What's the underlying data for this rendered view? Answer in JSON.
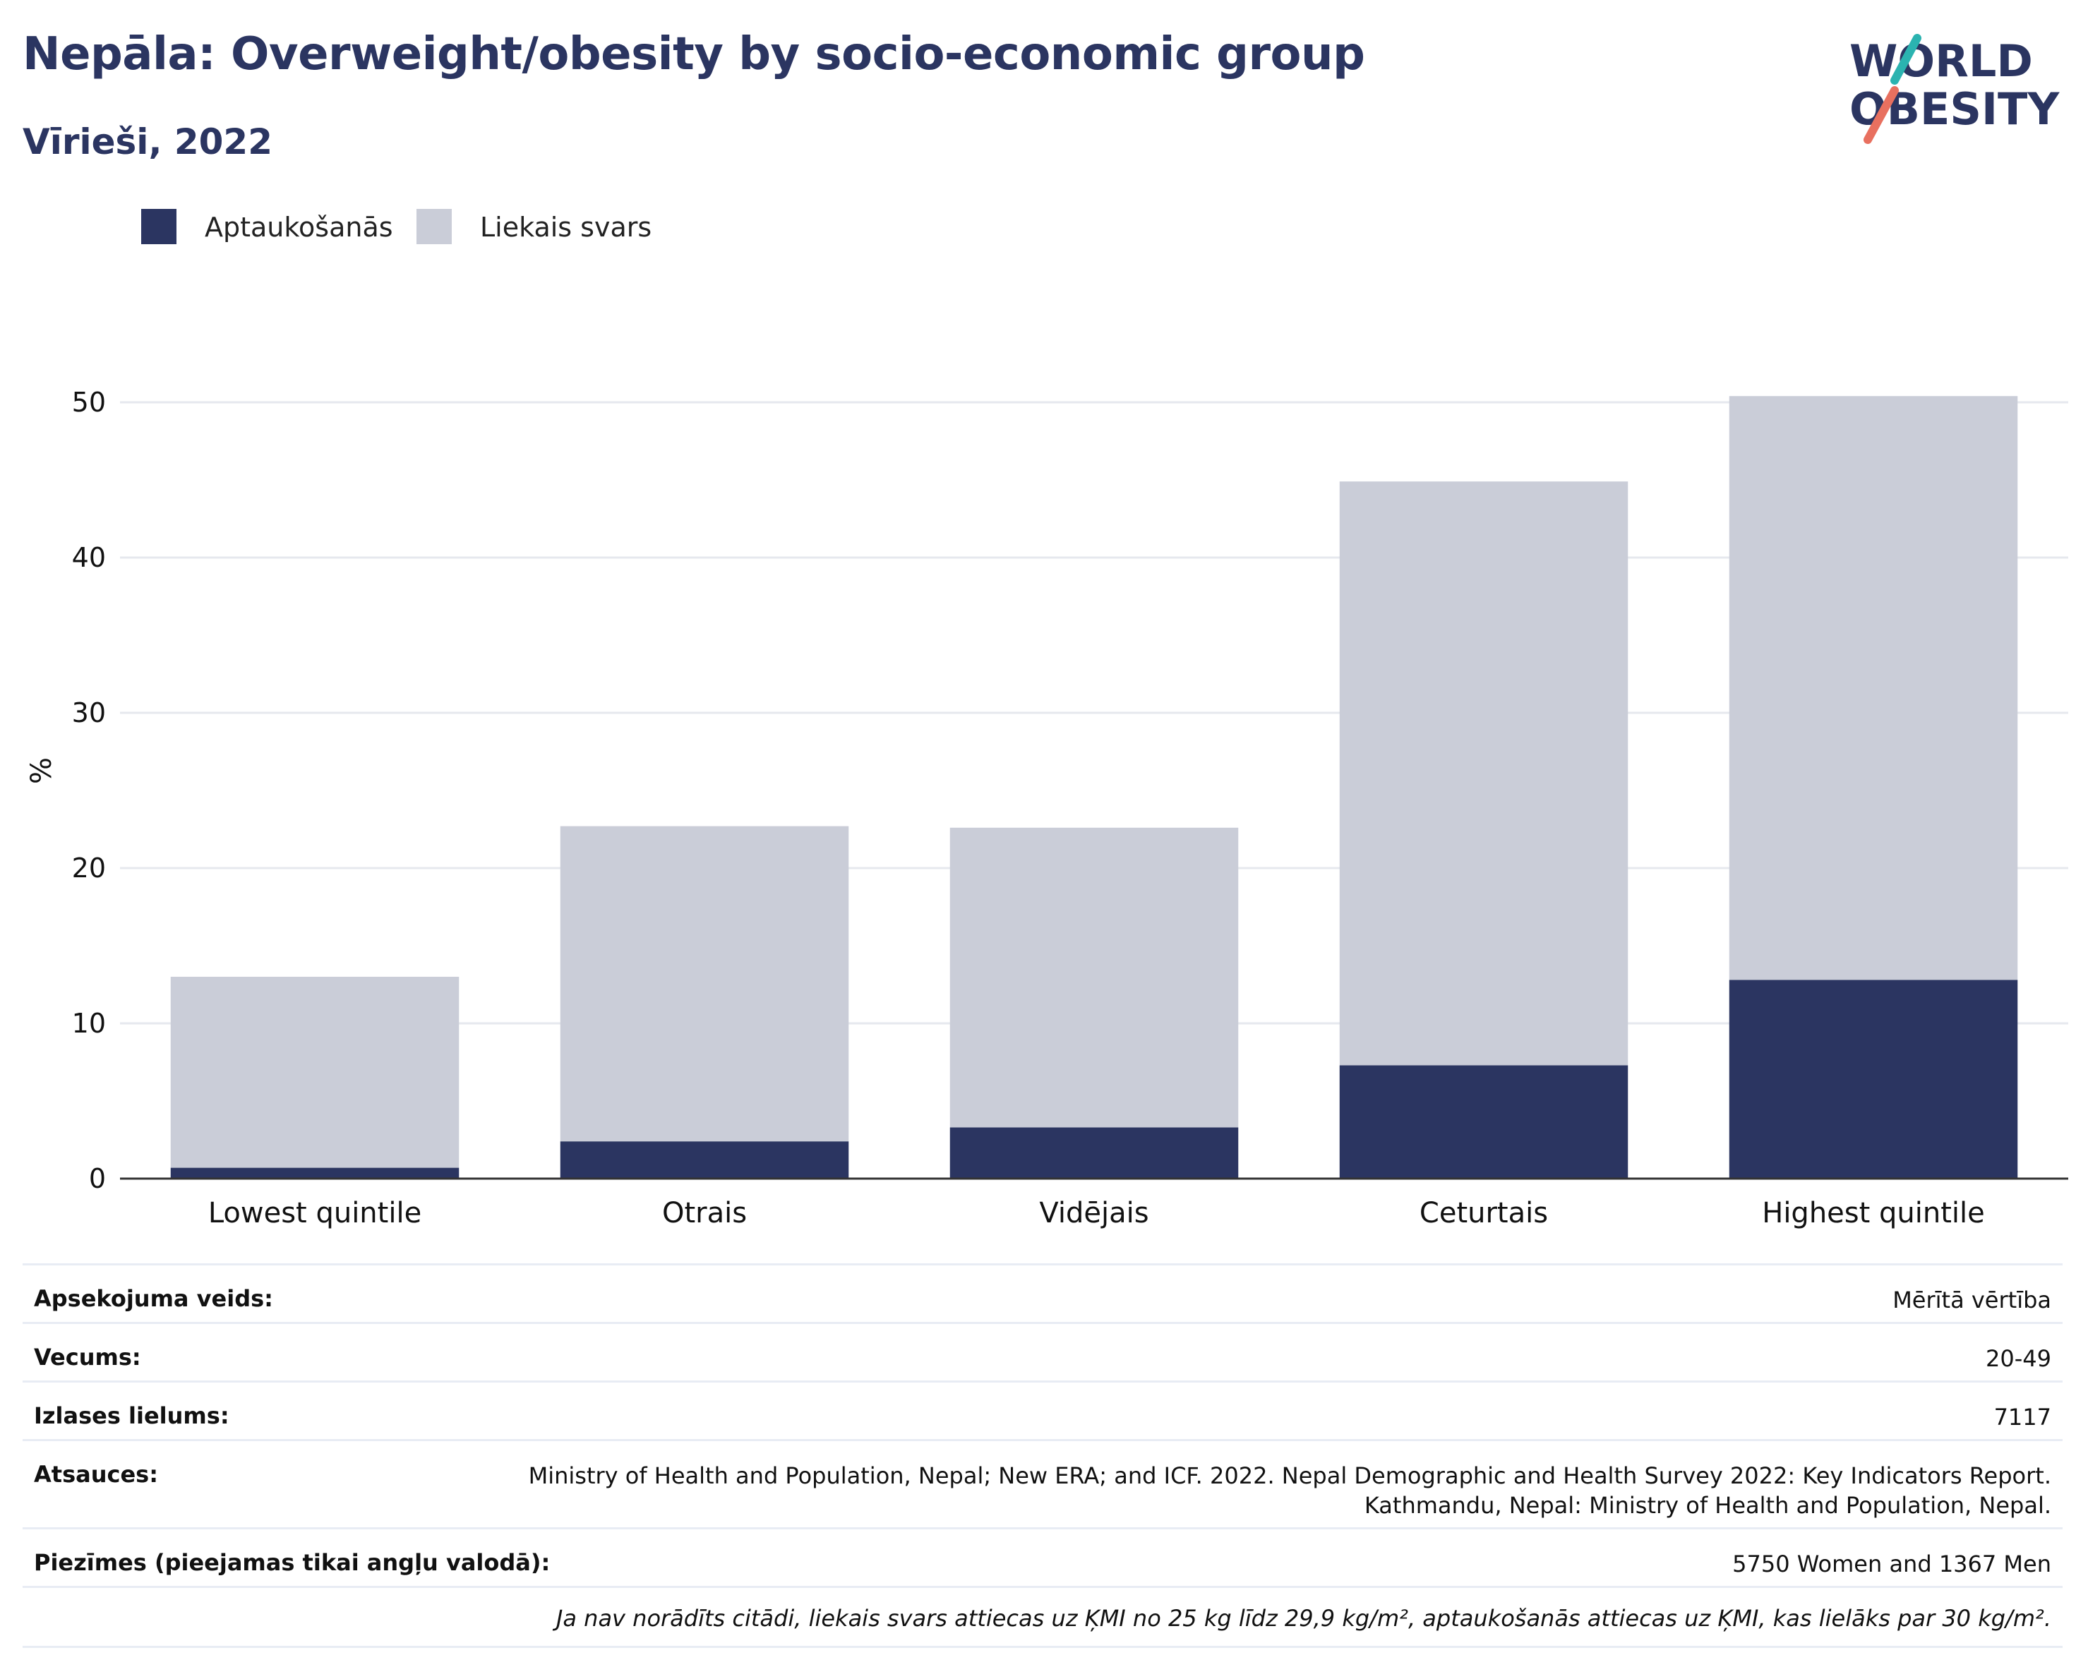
{
  "title": "Nepāla: Overweight/obesity by socio-economic group",
  "subtitle": "Vīrieši, 2022",
  "logo": {
    "line1": "WORLD",
    "line2": "OBESITY"
  },
  "legend": [
    {
      "label": "Aptaukošanās",
      "color": "#2b3561"
    },
    {
      "label": "Liekais svars",
      "color": "#cacdd8"
    }
  ],
  "chart_data": {
    "type": "bar",
    "stacked": true,
    "categories": [
      "Lowest quintile",
      "Otrais",
      "Vidējais",
      "Ceturtais",
      "Highest quintile"
    ],
    "series": [
      {
        "name": "Aptaukošanās",
        "color": "#2b3561",
        "values": [
          0.7,
          2.4,
          3.3,
          7.3,
          12.8
        ]
      },
      {
        "name": "Liekais svars",
        "color": "#cacdd8",
        "values": [
          12.3,
          20.3,
          19.3,
          37.6,
          37.6
        ]
      }
    ],
    "ylabel": "%",
    "xlabel": "",
    "ylim": [
      0,
      50
    ],
    "yticks": [
      0,
      10,
      20,
      30,
      40,
      50
    ],
    "grid": true,
    "legend_position": "top-left"
  },
  "meta": {
    "survey_type": {
      "label": "Apsekojuma veids:",
      "value": "Mērītā vērtība"
    },
    "age": {
      "label": "Vecums:",
      "value": "20-49"
    },
    "sample_size": {
      "label": "Izlases lielums:",
      "value": "7117"
    },
    "references": {
      "label": "Atsauces:",
      "value_line1": "Ministry of Health and Population, Nepal; New ERA; and ICF. 2022. Nepal Demographic and Health Survey 2022: Key Indicators Report.",
      "value_line2": "Kathmandu, Nepal: Ministry of Health and Population, Nepal."
    },
    "notes": {
      "label": "Piezīmes (pieejamas tikai angļu valodā):",
      "value": "5750 Women and 1367 Men"
    },
    "definition": "Ja nav norādīts citādi, liekais svars attiecas uz ĶMI no 25 kg līdz 29,9 kg/m², aptaukošanās attiecas uz ĶMI, kas lielāks par 30 kg/m²."
  }
}
